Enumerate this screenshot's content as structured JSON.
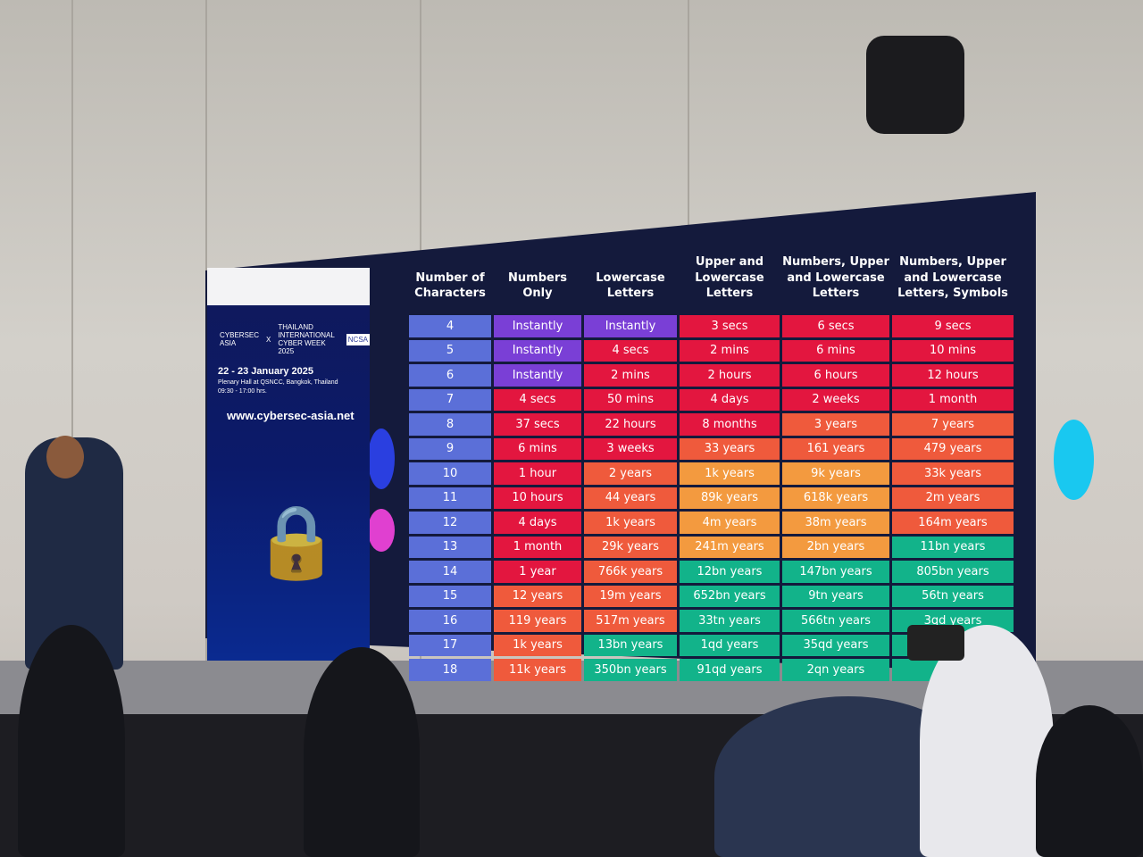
{
  "event_panel": {
    "brand": "CYBERSEC ASIA",
    "cross": "X",
    "partner": "THAILAND INTERNATIONAL CYBER WEEK 2025",
    "partner_badge": "NCSA",
    "date": "22 - 23 January 2025",
    "venue": "Plenary Hall at QSNCC, Bangkok, Thailand",
    "time": "09:30 - 17:00 hrs.",
    "url": "www.cybersec-asia.net"
  },
  "colors": {
    "purple": "#7a3fd6",
    "red": "#e3163f",
    "orange": "#ef5a3c",
    "yellow": "#f39a3f",
    "green": "#12b38a",
    "row_header": "#5b6fd8"
  },
  "table": {
    "headers": [
      "Number of Characters",
      "Numbers Only",
      "Lowercase Letters",
      "Upper and Lowercase Letters",
      "Numbers, Upper and Lowercase Letters",
      "Numbers, Upper and Lowercase Letters, Symbols"
    ],
    "rows": [
      {
        "chars": "4",
        "cells": [
          [
            "Instantly",
            "p"
          ],
          [
            "Instantly",
            "p"
          ],
          [
            "3 secs",
            "r"
          ],
          [
            "6 secs",
            "r"
          ],
          [
            "9 secs",
            "r"
          ]
        ]
      },
      {
        "chars": "5",
        "cells": [
          [
            "Instantly",
            "p"
          ],
          [
            "4 secs",
            "r"
          ],
          [
            "2 mins",
            "r"
          ],
          [
            "6 mins",
            "r"
          ],
          [
            "10 mins",
            "r"
          ]
        ]
      },
      {
        "chars": "6",
        "cells": [
          [
            "Instantly",
            "p"
          ],
          [
            "2 mins",
            "r"
          ],
          [
            "2 hours",
            "r"
          ],
          [
            "6 hours",
            "r"
          ],
          [
            "12 hours",
            "r"
          ]
        ]
      },
      {
        "chars": "7",
        "cells": [
          [
            "4 secs",
            "r"
          ],
          [
            "50 mins",
            "r"
          ],
          [
            "4 days",
            "r"
          ],
          [
            "2 weeks",
            "r"
          ],
          [
            "1 month",
            "r"
          ]
        ]
      },
      {
        "chars": "8",
        "cells": [
          [
            "37 secs",
            "r"
          ],
          [
            "22 hours",
            "r"
          ],
          [
            "8 months",
            "r"
          ],
          [
            "3 years",
            "o"
          ],
          [
            "7 years",
            "o"
          ]
        ]
      },
      {
        "chars": "9",
        "cells": [
          [
            "6 mins",
            "r"
          ],
          [
            "3 weeks",
            "r"
          ],
          [
            "33 years",
            "o"
          ],
          [
            "161 years",
            "o"
          ],
          [
            "479 years",
            "o"
          ]
        ]
      },
      {
        "chars": "10",
        "cells": [
          [
            "1 hour",
            "r"
          ],
          [
            "2 years",
            "o"
          ],
          [
            "1k years",
            "y"
          ],
          [
            "9k years",
            "y"
          ],
          [
            "33k years",
            "o"
          ]
        ]
      },
      {
        "chars": "11",
        "cells": [
          [
            "10 hours",
            "r"
          ],
          [
            "44 years",
            "o"
          ],
          [
            "89k years",
            "y"
          ],
          [
            "618k years",
            "y"
          ],
          [
            "2m years",
            "o"
          ]
        ]
      },
      {
        "chars": "12",
        "cells": [
          [
            "4 days",
            "r"
          ],
          [
            "1k years",
            "o"
          ],
          [
            "4m years",
            "y"
          ],
          [
            "38m years",
            "y"
          ],
          [
            "164m years",
            "o"
          ]
        ]
      },
      {
        "chars": "13",
        "cells": [
          [
            "1 month",
            "r"
          ],
          [
            "29k years",
            "o"
          ],
          [
            "241m years",
            "y"
          ],
          [
            "2bn years",
            "y"
          ],
          [
            "11bn years",
            "g"
          ]
        ]
      },
      {
        "chars": "14",
        "cells": [
          [
            "1 year",
            "r"
          ],
          [
            "766k years",
            "o"
          ],
          [
            "12bn years",
            "g"
          ],
          [
            "147bn years",
            "g"
          ],
          [
            "805bn years",
            "g"
          ]
        ]
      },
      {
        "chars": "15",
        "cells": [
          [
            "12 years",
            "o"
          ],
          [
            "19m years",
            "o"
          ],
          [
            "652bn years",
            "g"
          ],
          [
            "9tn years",
            "g"
          ],
          [
            "56tn years",
            "g"
          ]
        ]
      },
      {
        "chars": "16",
        "cells": [
          [
            "119 years",
            "o"
          ],
          [
            "517m years",
            "o"
          ],
          [
            "33tn years",
            "g"
          ],
          [
            "566tn years",
            "g"
          ],
          [
            "3qd years",
            "g"
          ]
        ]
      },
      {
        "chars": "17",
        "cells": [
          [
            "1k years",
            "o"
          ],
          [
            "13bn years",
            "g"
          ],
          [
            "1qd years",
            "g"
          ],
          [
            "35qd years",
            "g"
          ],
          [
            "",
            "g"
          ]
        ]
      },
      {
        "chars": "18",
        "cells": [
          [
            "11k years",
            "o"
          ],
          [
            "350bn years",
            "g"
          ],
          [
            "91qd years",
            "g"
          ],
          [
            "2qn years",
            "g"
          ],
          [
            "",
            "g"
          ]
        ]
      }
    ]
  }
}
